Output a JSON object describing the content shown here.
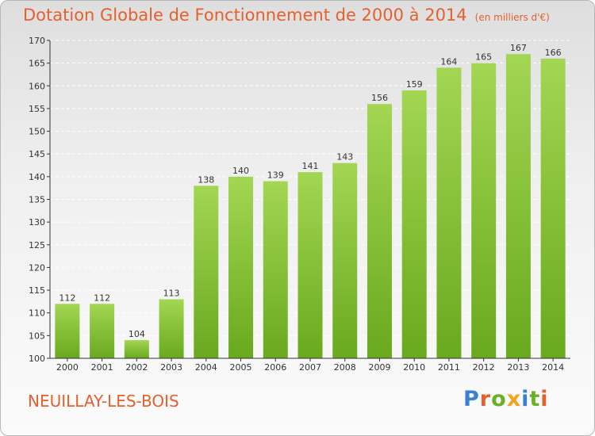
{
  "title": "Dotation Globale de Fonctionnement de 2000 à 2014",
  "unit_note": "(en milliers d'€)",
  "commune": "NEUILLAY-LES-BOIS",
  "logo": {
    "letters": [
      "P",
      "r",
      "o",
      "x",
      "i",
      "t",
      "i"
    ],
    "colors": [
      "#3a7fd0",
      "#e4602f",
      "#6ab023",
      "#f2a51c",
      "#3a7fd0",
      "#6ab023",
      "#e4602f"
    ]
  },
  "colors": {
    "title": "#e4602f",
    "bar_light": "#a3d653",
    "bar_dark": "#69a91e",
    "axis": "#333333",
    "grid": "#ffffff"
  },
  "chart_data": {
    "type": "bar",
    "categories": [
      "2000",
      "2001",
      "2002",
      "2003",
      "2004",
      "2005",
      "2006",
      "2007",
      "2008",
      "2009",
      "2010",
      "2011",
      "2012",
      "2013",
      "2014"
    ],
    "values": [
      112,
      112,
      104,
      113,
      138,
      140,
      139,
      141,
      143,
      156,
      159,
      164,
      165,
      167,
      166
    ],
    "ylim": [
      100,
      170
    ],
    "yticks": [
      100,
      105,
      110,
      115,
      120,
      125,
      130,
      135,
      140,
      145,
      150,
      155,
      160,
      165,
      170
    ],
    "grid": true,
    "xlabel": "",
    "ylabel": ""
  }
}
